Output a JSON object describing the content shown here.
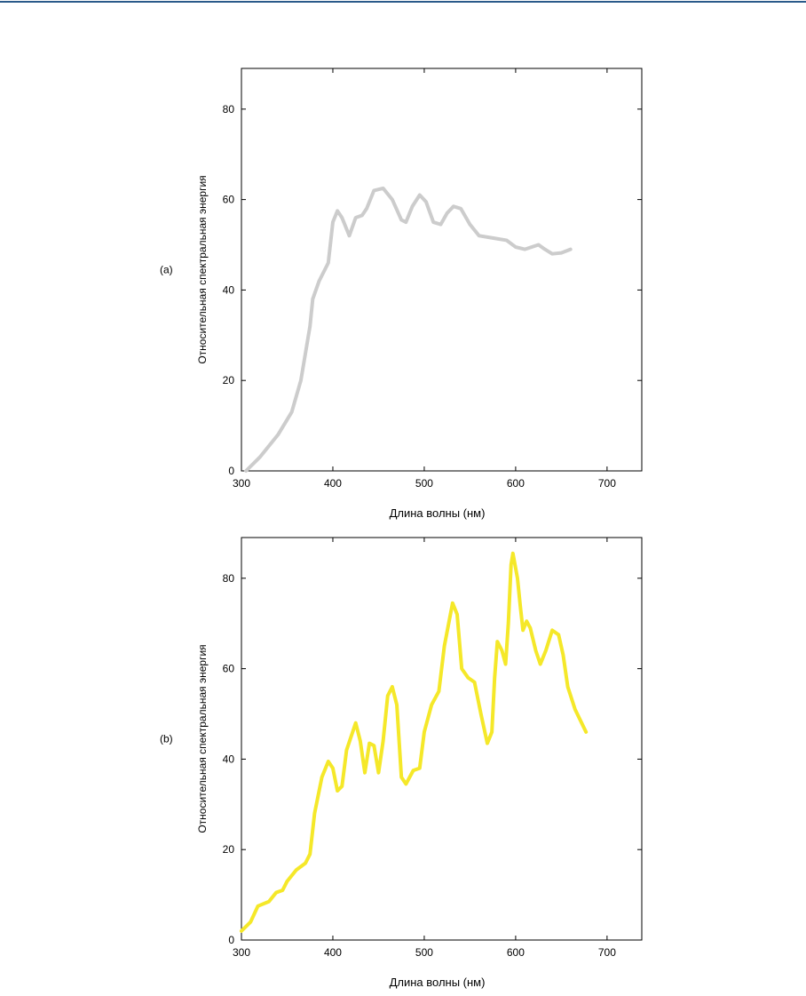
{
  "chart_data": [
    {
      "type": "line",
      "panel_label": "(a)",
      "xlabel": "Длина волны (нм)",
      "ylabel": "Относительная спектральная энергия",
      "xlim": [
        300,
        738
      ],
      "ylim": [
        0,
        89
      ],
      "xticks": [
        300,
        400,
        500,
        600,
        700
      ],
      "yticks": [
        0,
        20,
        40,
        60,
        80
      ],
      "series": [
        {
          "color": "#cccccc",
          "x": [
            305,
            320,
            340,
            355,
            365,
            370,
            375,
            378,
            385,
            395,
            400,
            405,
            410,
            418,
            425,
            432,
            437,
            445,
            455,
            465,
            475,
            480,
            487,
            495,
            502,
            510,
            518,
            525,
            532,
            540,
            550,
            560,
            575,
            590,
            600,
            610,
            625,
            632,
            640,
            650,
            660
          ],
          "values": [
            0,
            3,
            8,
            13,
            20,
            26,
            32,
            38,
            42,
            46,
            55,
            57.5,
            56,
            52,
            56,
            56.5,
            58,
            62,
            62.5,
            60,
            55.5,
            55,
            58.5,
            61,
            59.5,
            55,
            54.5,
            57,
            58.5,
            58,
            54.5,
            52,
            51.5,
            51,
            49.5,
            49,
            50,
            49,
            48,
            48.2,
            49
          ]
        }
      ]
    },
    {
      "type": "line",
      "panel_label": "(b)",
      "xlabel": "Длина волны (нм)",
      "ylabel": "Относительная спектральная энергия",
      "xlim": [
        300,
        738
      ],
      "ylim": [
        0,
        89
      ],
      "xticks": [
        300,
        400,
        500,
        600,
        700
      ],
      "yticks": [
        0,
        20,
        40,
        60,
        80
      ],
      "series": [
        {
          "color": "#f5e829",
          "x": [
            300,
            310,
            318,
            330,
            338,
            345,
            350,
            360,
            370,
            375,
            380,
            388,
            395,
            400,
            405,
            410,
            415,
            425,
            430,
            435,
            440,
            445,
            450,
            455,
            460,
            465,
            470,
            475,
            480,
            488,
            495,
            500,
            508,
            516,
            522,
            531,
            536,
            541,
            548,
            555,
            562,
            569,
            574,
            577,
            580,
            585,
            589,
            592,
            595,
            597,
            602,
            605,
            608,
            612,
            616,
            622,
            627,
            633,
            640,
            647,
            652,
            657,
            665,
            677
          ],
          "values": [
            2,
            4,
            7.5,
            8.5,
            10.5,
            11,
            13,
            15.5,
            17,
            19,
            28,
            36,
            39.5,
            38,
            33,
            34,
            42,
            48,
            44,
            37,
            43.5,
            43,
            37,
            44,
            54,
            56,
            52,
            36,
            34.5,
            37.5,
            38,
            46,
            52,
            55,
            65,
            74.5,
            72,
            60,
            58,
            57,
            50,
            43.5,
            46,
            58,
            66,
            64,
            61,
            70,
            83,
            85.5,
            80,
            74,
            68.5,
            70.5,
            69,
            64,
            61,
            64,
            68.5,
            67.5,
            63,
            56,
            51,
            46
          ]
        }
      ]
    }
  ]
}
